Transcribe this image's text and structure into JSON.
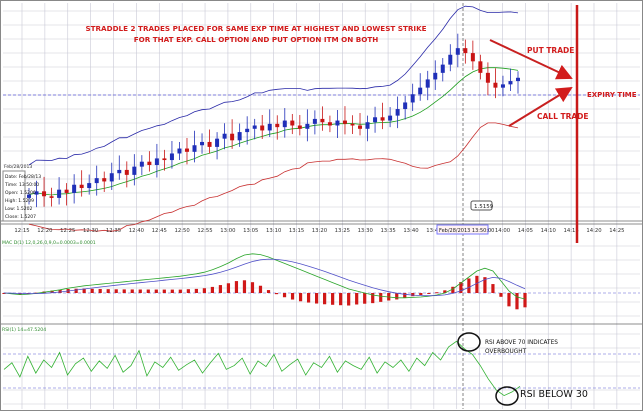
{
  "title_lines": [
    "STRADDLE 2 TRADES PLACED FOR SAME EXP TIME AT HIGHEST AND LOWEST STRIKE",
    "FOR THAT EXP. CALL OPTION AND PUT OPTION ITM ON BOTH"
  ],
  "annotations": {
    "put_trade": "PUT TRADE",
    "expiry_time": "EXPIRY TIME",
    "call_trade": "CALL TRADE",
    "rsi_above": "RSI ABOVE 70 INDICATES",
    "rsi_above_2": "OVERBOUGHT",
    "rsi_below": "RSI BELOW 30",
    "price_marker": "1.5159",
    "cursor_time": "Feb/28/2013 13:50:00"
  },
  "info_box": {
    "date": "Feb/28/2013",
    "rows": [
      {
        "k": "Date:",
        "v": "Feb/28/13"
      },
      {
        "k": "Time:",
        "v": "13:50:00"
      },
      {
        "k": "Open:",
        "v": "1.5206"
      },
      {
        "k": "High:",
        "v": "1.5209"
      },
      {
        "k": "Low:",
        "v": "1.5202"
      },
      {
        "k": "Close:",
        "v": "1.5207"
      }
    ]
  },
  "panel_labels": {
    "macd": "MAC D(1) 12,0,26,0,9,0=0.0003=0.0001",
    "rsi": "RSI(1) 14=47.5204"
  },
  "colors": {
    "bull": "#1f2fb8",
    "bear": "#c81414",
    "upper_band": "#2a2aa8",
    "lower_band": "#c83030",
    "mid_band": "#1e9e1e",
    "annotation": "#d21c1c",
    "macd_hist": "#d01818",
    "rsi": "#33b233",
    "grid": "#c9c9d6"
  },
  "chart_data": [
    {
      "type": "candlestick",
      "x_ticks": [
        "12:15",
        "12:20",
        "12:25",
        "12:30",
        "12:35",
        "12:40",
        "12:45",
        "12:50",
        "12:55",
        "13:00",
        "13:05",
        "13:10",
        "13:15",
        "13:20",
        "13:25",
        "13:30",
        "13:35",
        "13:40",
        "13:45",
        "13:50",
        "13:55",
        "14:00",
        "14:05",
        "14:10",
        "14:15",
        "14:20",
        "14:25"
      ],
      "closes": [
        1.5118,
        1.512,
        1.5117,
        1.5116,
        1.5121,
        1.5119,
        1.5124,
        1.5122,
        1.5125,
        1.5128,
        1.5126,
        1.5131,
        1.5133,
        1.513,
        1.5135,
        1.5138,
        1.5136,
        1.514,
        1.5139,
        1.5143,
        1.5146,
        1.5144,
        1.5148,
        1.515,
        1.5147,
        1.5152,
        1.5155,
        1.5151,
        1.5156,
        1.5158,
        1.516,
        1.5157,
        1.5161,
        1.5159,
        1.5163,
        1.516,
        1.5158,
        1.5161,
        1.5164,
        1.5162,
        1.516,
        1.5163,
        1.5161,
        1.516,
        1.5158,
        1.5162,
        1.5165,
        1.5163,
        1.5166,
        1.517,
        1.5174,
        1.5179,
        1.5183,
        1.5188,
        1.5192,
        1.5197,
        1.5203,
        1.5207,
        1.5204,
        1.5199,
        1.5192,
        1.5186,
        1.5183,
        1.5185,
        1.5187,
        1.5189
      ]
    },
    {
      "type": "line",
      "name": "MACD",
      "values": [
        0.0,
        -0.02,
        -0.04,
        -0.03,
        -0.01,
        0.02,
        0.05,
        0.08,
        0.12,
        0.15,
        0.18,
        0.2,
        0.22,
        0.24,
        0.26,
        0.28,
        0.3,
        0.32,
        0.34,
        0.36,
        0.38,
        0.4,
        0.42,
        0.45,
        0.48,
        0.52,
        0.58,
        0.66,
        0.75,
        0.86,
        0.95,
        0.98,
        0.96,
        0.9,
        0.82,
        0.74,
        0.66,
        0.58,
        0.5,
        0.42,
        0.34,
        0.26,
        0.18,
        0.1,
        0.05,
        0.0,
        -0.05,
        -0.08,
        -0.1,
        -0.12,
        -0.12,
        -0.11,
        -0.1,
        -0.08,
        -0.05,
        0.0,
        0.1,
        0.25,
        0.4,
        0.55,
        0.62,
        0.55,
        0.3,
        0.05,
        -0.1,
        -0.15
      ]
    },
    {
      "type": "line",
      "name": "RSI",
      "values": [
        48,
        55,
        40,
        62,
        44,
        58,
        50,
        66,
        42,
        54,
        60,
        46,
        57,
        49,
        63,
        45,
        52,
        68,
        41,
        56,
        50,
        61,
        47,
        53,
        58,
        44,
        55,
        65,
        48,
        52,
        60,
        43,
        57,
        51,
        64,
        46,
        53,
        59,
        42,
        55,
        50,
        62,
        45,
        57,
        52,
        48,
        61,
        44,
        56,
        50,
        58,
        46,
        60,
        52,
        66,
        58,
        72,
        78,
        70,
        64,
        52,
        38,
        26,
        20,
        24,
        30
      ]
    }
  ]
}
